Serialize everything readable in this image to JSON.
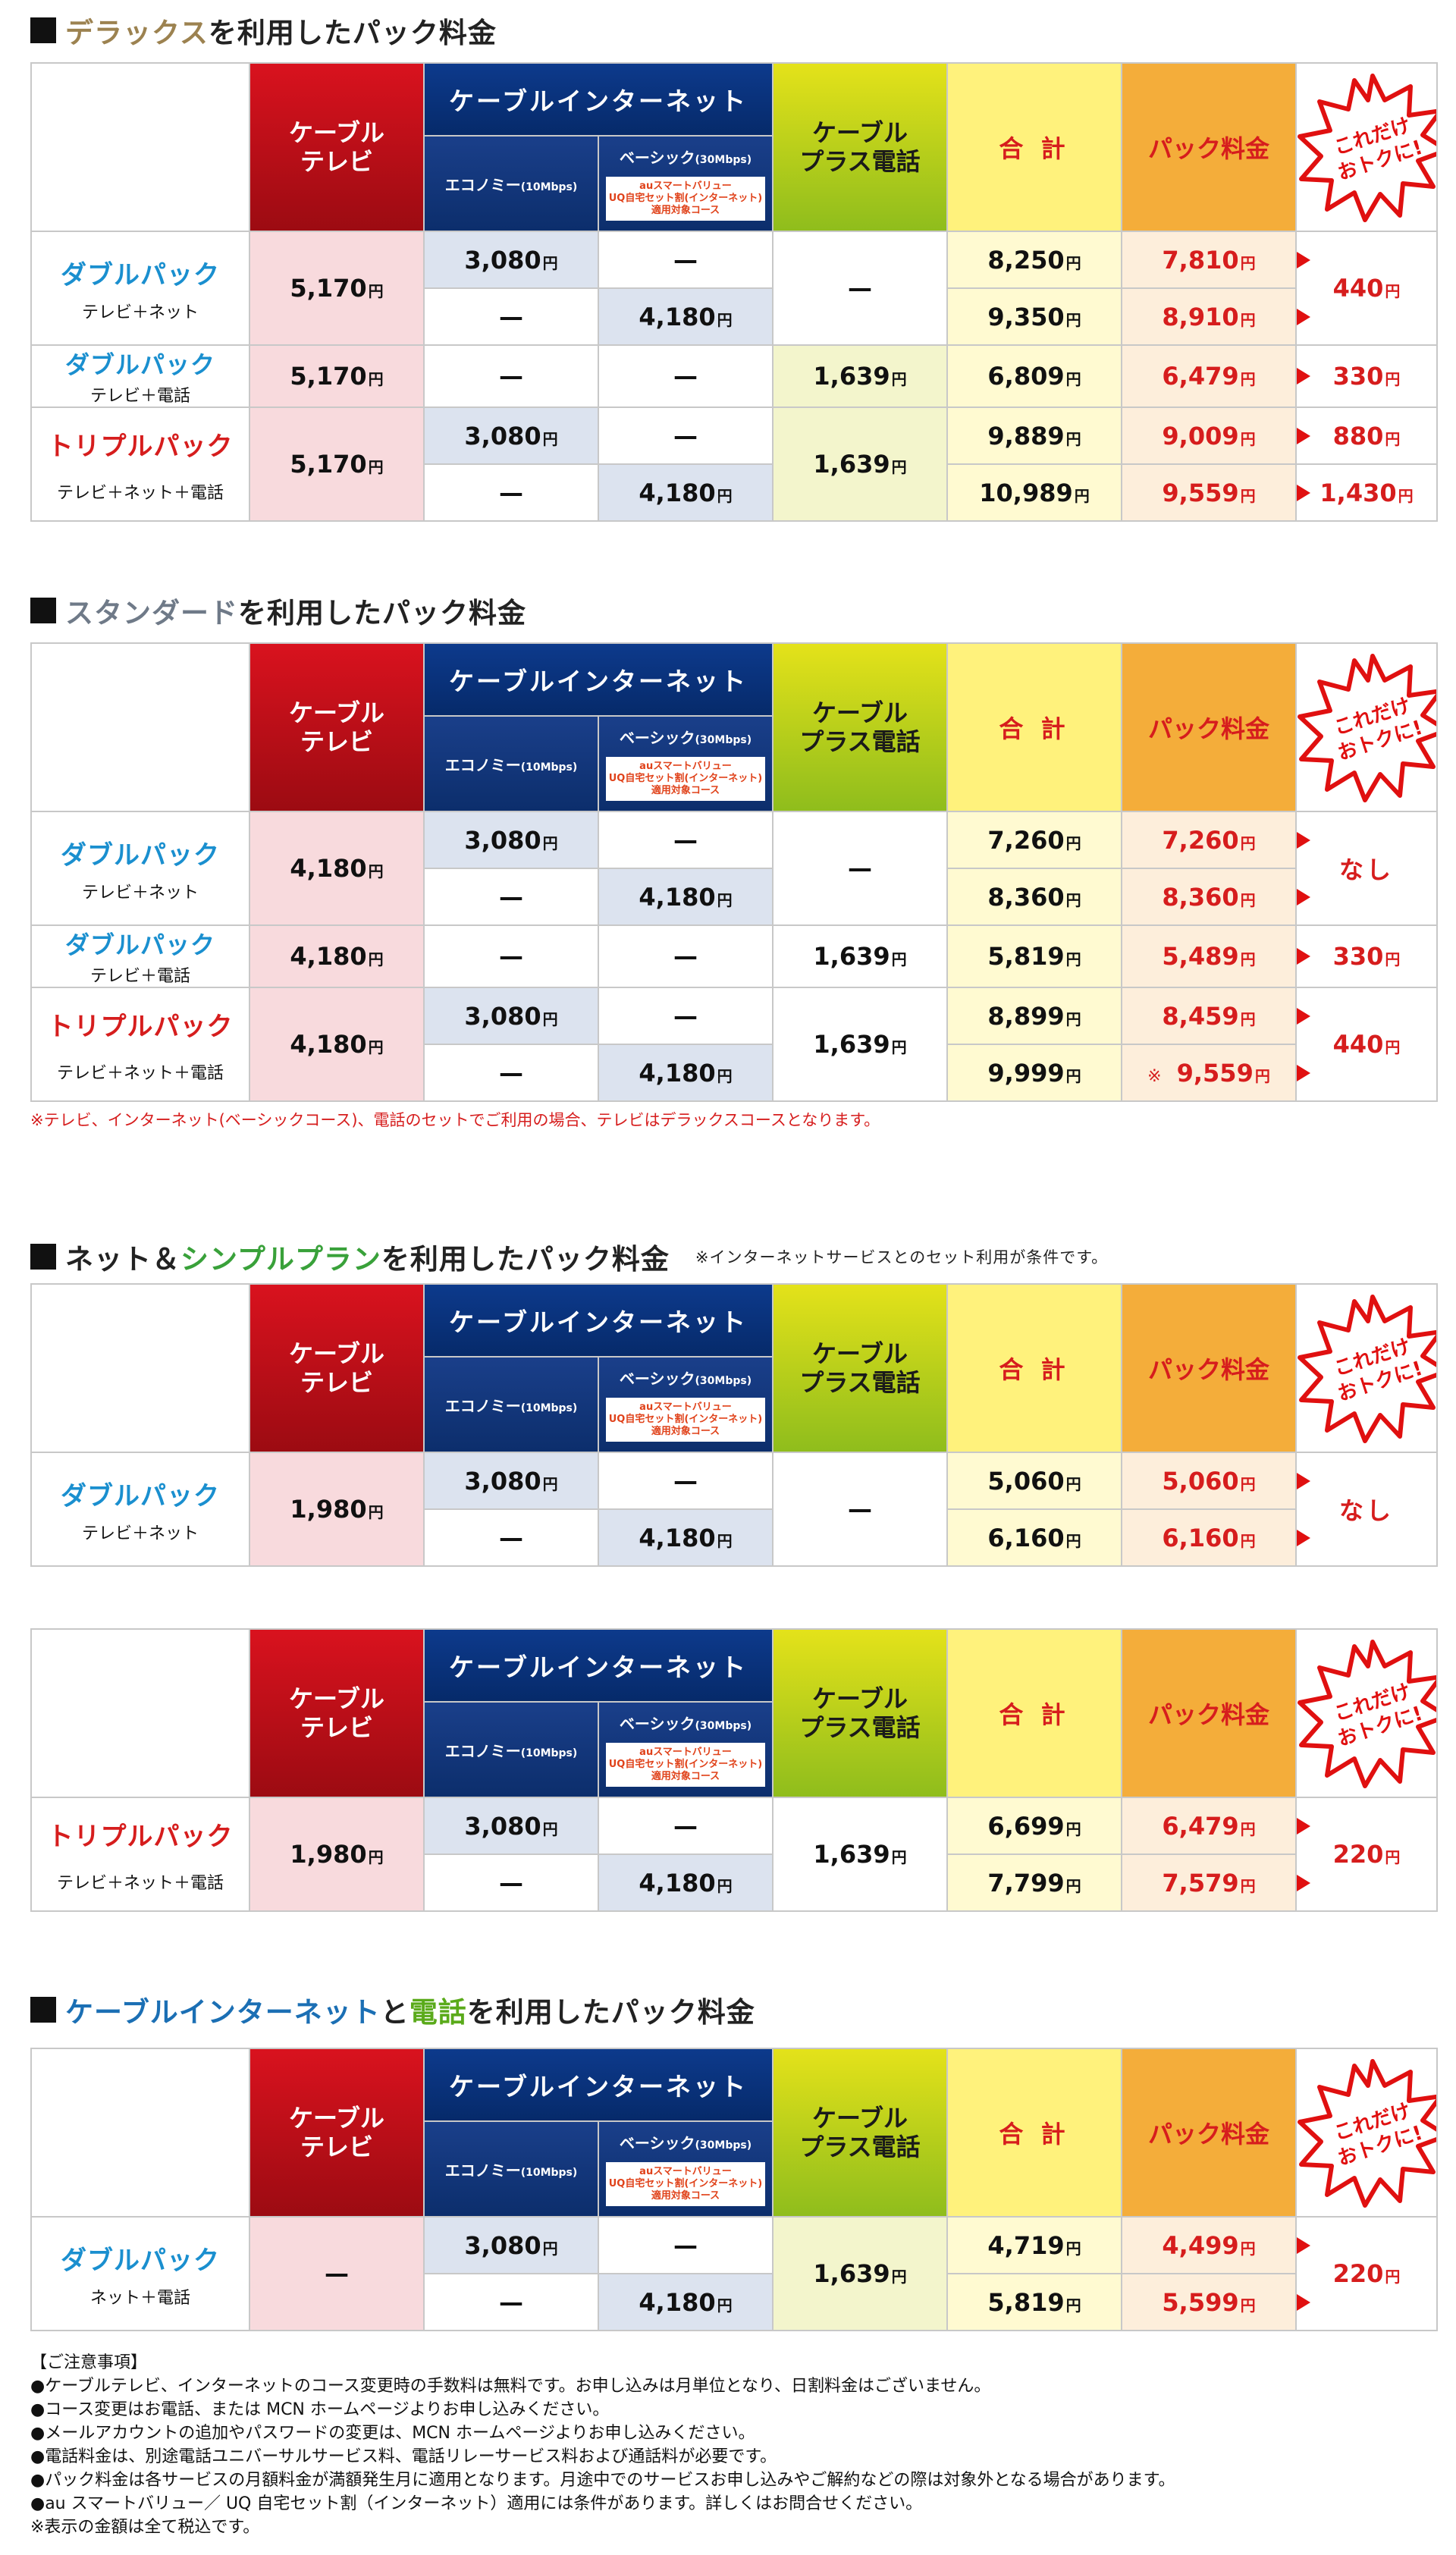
{
  "headers": {
    "tv": [
      "ケーブル",
      "テレビ"
    ],
    "internet": "ケーブルインターネット",
    "economy": "エコノミー",
    "economy_speed": "(10Mbps)",
    "basic": "ベーシック",
    "basic_speed": "(30Mbps)",
    "basic_badge": [
      "auスマートバリュー",
      "UQ自宅セット割(インターネット)",
      "適用対象コース"
    ],
    "plus": [
      "ケーブル",
      "プラス電話"
    ],
    "total": "合 計",
    "pack": "パック料金",
    "burst": [
      "これだけ",
      "おトクに!"
    ]
  },
  "yen": "円",
  "dash": "—",
  "sections": {
    "deluxe": {
      "heading_accent": "デラックス",
      "heading_rest": "を利用したパック料金",
      "rows": {
        "dbl_net": {
          "title": "ダブルパック",
          "sub": "テレビ＋ネット",
          "tv": "5,170",
          "r1": {
            "eco": "3,080",
            "basic": "—",
            "total": "8,250",
            "pack": "7,810"
          },
          "r2": {
            "eco": "—",
            "basic": "4,180",
            "total": "9,350",
            "pack": "8,910"
          },
          "plus": "—",
          "save": "440"
        },
        "dbl_tel": {
          "title": "ダブルパック",
          "sub": "テレビ＋電話",
          "tv": "5,170",
          "eco": "—",
          "basic": "—",
          "plus": "1,639",
          "total": "6,809",
          "pack": "6,479",
          "save": "330"
        },
        "triple": {
          "title": "トリプルパック",
          "sub": "テレビ＋ネット＋電話",
          "tv": "5,170",
          "plus": "1,639",
          "r1": {
            "eco": "3,080",
            "basic": "—",
            "total": "9,889",
            "pack": "9,009",
            "save": "880"
          },
          "r2": {
            "eco": "—",
            "basic": "4,180",
            "total": "10,989",
            "pack": "9,559",
            "save": "1,430"
          }
        }
      }
    },
    "standard": {
      "heading_accent": "スタンダード",
      "heading_rest": "を利用したパック料金",
      "rows": {
        "dbl_net": {
          "title": "ダブルパック",
          "sub": "テレビ＋ネット",
          "tv": "4,180",
          "r1": {
            "eco": "3,080",
            "basic": "—",
            "total": "7,260",
            "pack": "7,260"
          },
          "r2": {
            "eco": "—",
            "basic": "4,180",
            "total": "8,360",
            "pack": "8,360"
          },
          "plus": "—",
          "save": "なし"
        },
        "dbl_tel": {
          "title": "ダブルパック",
          "sub": "テレビ＋電話",
          "tv": "4,180",
          "eco": "—",
          "basic": "—",
          "plus": "1,639",
          "total": "5,819",
          "pack": "5,489",
          "save": "330"
        },
        "triple": {
          "title": "トリプルパック",
          "sub": "テレビ＋ネット＋電話",
          "tv": "4,180",
          "plus": "1,639",
          "r1": {
            "eco": "3,080",
            "basic": "—",
            "total": "8,899",
            "pack": "8,459"
          },
          "r2": {
            "eco": "—",
            "basic": "4,180",
            "total": "9,999",
            "pack": "9,559",
            "kome": "※"
          },
          "save": "440"
        }
      },
      "footnote": "※テレビ、インターネット(ベーシックコース)、電話のセットでご利用の場合、テレビはデラックスコースとなります。"
    },
    "net_simple": {
      "heading_prefix": "ネット＆",
      "heading_accent": "シンプルプラン",
      "heading_rest": "を利用したパック料金",
      "heading_note": "※インターネットサービスとのセット利用が条件です。",
      "rows": {
        "dbl_net": {
          "title": "ダブルパック",
          "sub": "テレビ＋ネット",
          "tv": "1,980",
          "r1": {
            "eco": "3,080",
            "basic": "—",
            "total": "5,060",
            "pack": "5,060"
          },
          "r2": {
            "eco": "—",
            "basic": "4,180",
            "total": "6,160",
            "pack": "6,160"
          },
          "plus": "—",
          "save": "なし"
        },
        "triple": {
          "title": "トリプルパック",
          "sub": "テレビ＋ネット＋電話",
          "tv": "1,980",
          "plus": "1,639",
          "r1": {
            "eco": "3,080",
            "basic": "—",
            "total": "6,699",
            "pack": "6,479"
          },
          "r2": {
            "eco": "—",
            "basic": "4,180",
            "total": "7,799",
            "pack": "7,579"
          },
          "save": "220"
        }
      }
    },
    "net_tel": {
      "heading_accent1": "ケーブルインターネット",
      "heading_mid": "と",
      "heading_accent2": "電話",
      "heading_rest": "を利用したパック料金",
      "rows": {
        "dbl": {
          "title": "ダブルパック",
          "sub": "ネット＋電話",
          "tv": "—",
          "plus": "1,639",
          "r1": {
            "eco": "3,080",
            "basic": "—",
            "total": "4,719",
            "pack": "4,499"
          },
          "r2": {
            "eco": "—",
            "basic": "4,180",
            "total": "5,819",
            "pack": "5,599"
          },
          "save": "220"
        }
      }
    }
  },
  "notes": [
    "【ご注意事項】",
    "●ケーブルテレビ、インターネットのコース変更時の手数料は無料です。お申し込みは月単位となり、日割料金はございません。",
    "●コース変更はお電話、または MCN ホームページよりお申し込みください。",
    "●メールアカウントの追加やパスワードの変更は、MCN ホームページよりお申し込みください。",
    "●電話料金は、別途電話ユニバーサルサービス料、電話リレーサービス料および通話料が必要です。",
    "●パック料金は各サービスの月額料金が満額発生月に適用となります。月途中でのサービスお申し込みやご解約などの際は対象外となる場合があります。",
    "●au スマートバリュー／ UQ 自宅セット割（インターネット）適用には条件があります。詳しくはお問合せください。",
    "※表示の金額は全て税込です。"
  ]
}
